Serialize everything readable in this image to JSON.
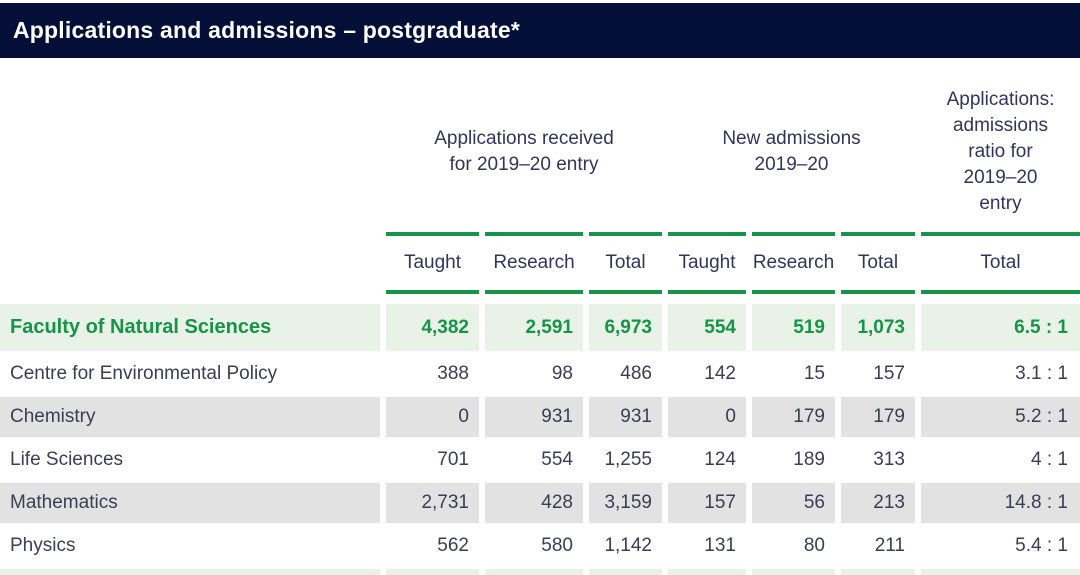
{
  "title_bar": {
    "title": "Applications and admissions – postgraduate*"
  },
  "colors": {
    "navy": "#030f36",
    "green": "#169447",
    "light_green": "#e9f2e6",
    "row_gray": "#e2e2e2",
    "text_dark": "#3c3c55",
    "header_text": "#34345a"
  },
  "table": {
    "group_headers": {
      "applications": "Applications received\nfor 2019–20 entry",
      "admissions": "New admissions\n2019–20",
      "ratio": "Applications:\nadmissions\nratio for\n2019–20\nentry"
    },
    "sub_headers": [
      "Taught",
      "Research",
      "Total",
      "Taught",
      "Research",
      "Total",
      "Total"
    ],
    "rows": [
      {
        "label": "Faculty of Natural Sciences",
        "values": [
          "4,382",
          "2,591",
          "6,973",
          "554",
          "519",
          "1,073",
          "6.5 : 1"
        ]
      },
      {
        "label": "Centre for Environmental Policy",
        "values": [
          "388",
          "98",
          "486",
          "142",
          "15",
          "157",
          "3.1 : 1"
        ]
      },
      {
        "label": "Chemistry",
        "values": [
          "0",
          "931",
          "931",
          "0",
          "179",
          "179",
          "5.2 : 1"
        ]
      },
      {
        "label": "Life Sciences",
        "values": [
          "701",
          "554",
          "1,255",
          "124",
          "189",
          "313",
          "4 : 1"
        ]
      },
      {
        "label": "Mathematics",
        "values": [
          "2,731",
          "428",
          "3,159",
          "157",
          "56",
          "213",
          "14.8 : 1"
        ]
      },
      {
        "label": "Physics",
        "values": [
          "562",
          "580",
          "1,142",
          "131",
          "80",
          "211",
          "5.4 : 1"
        ]
      }
    ]
  }
}
